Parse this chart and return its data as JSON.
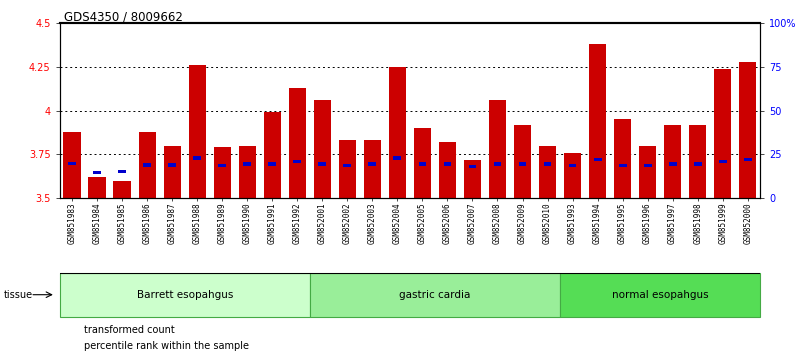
{
  "title": "GDS4350 / 8009662",
  "samples": [
    "GSM851983",
    "GSM851984",
    "GSM851985",
    "GSM851986",
    "GSM851987",
    "GSM851988",
    "GSM851989",
    "GSM851990",
    "GSM851991",
    "GSM851992",
    "GSM852001",
    "GSM852002",
    "GSM852003",
    "GSM852004",
    "GSM852005",
    "GSM852006",
    "GSM852007",
    "GSM852008",
    "GSM852009",
    "GSM852010",
    "GSM851993",
    "GSM851994",
    "GSM851995",
    "GSM851996",
    "GSM851997",
    "GSM851998",
    "GSM851999",
    "GSM852000"
  ],
  "red_values": [
    3.88,
    3.62,
    3.6,
    3.88,
    3.8,
    4.26,
    3.79,
    3.8,
    3.99,
    4.13,
    4.06,
    3.83,
    3.83,
    4.25,
    3.9,
    3.82,
    3.72,
    4.06,
    3.92,
    3.8,
    3.76,
    4.38,
    3.95,
    3.8,
    3.92,
    3.92,
    4.24,
    4.28
  ],
  "blue_values": [
    3.7,
    3.645,
    3.655,
    3.69,
    3.69,
    3.73,
    3.685,
    3.695,
    3.695,
    3.71,
    3.695,
    3.685,
    3.695,
    3.73,
    3.695,
    3.695,
    3.68,
    3.695,
    3.695,
    3.695,
    3.685,
    3.72,
    3.685,
    3.685,
    3.695,
    3.695,
    3.71,
    3.72
  ],
  "group_labels": [
    "Barrett esopahgus",
    "gastric cardia",
    "normal esopahgus"
  ],
  "group_counts": [
    10,
    10,
    8
  ],
  "group_colors": [
    "#ccffcc",
    "#99ee99",
    "#55dd55"
  ],
  "bar_color": "#cc0000",
  "blue_color": "#0000cc",
  "ylim_left": [
    3.5,
    4.5
  ],
  "ylim_right": [
    0,
    100
  ],
  "yticks_left": [
    3.5,
    3.75,
    4.0,
    4.25,
    4.5
  ],
  "yticks_right": [
    0,
    25,
    50,
    75,
    100
  ],
  "yticklabels_left": [
    "3.5",
    "3.75",
    "4",
    "4.25",
    "4.5"
  ],
  "yticklabels_right": [
    "0",
    "25",
    "50",
    "75",
    "100%"
  ],
  "grid_values": [
    3.75,
    4.0,
    4.25
  ],
  "tissue_label": "tissue",
  "legend_red": "transformed count",
  "legend_blue": "percentile rank within the sample"
}
